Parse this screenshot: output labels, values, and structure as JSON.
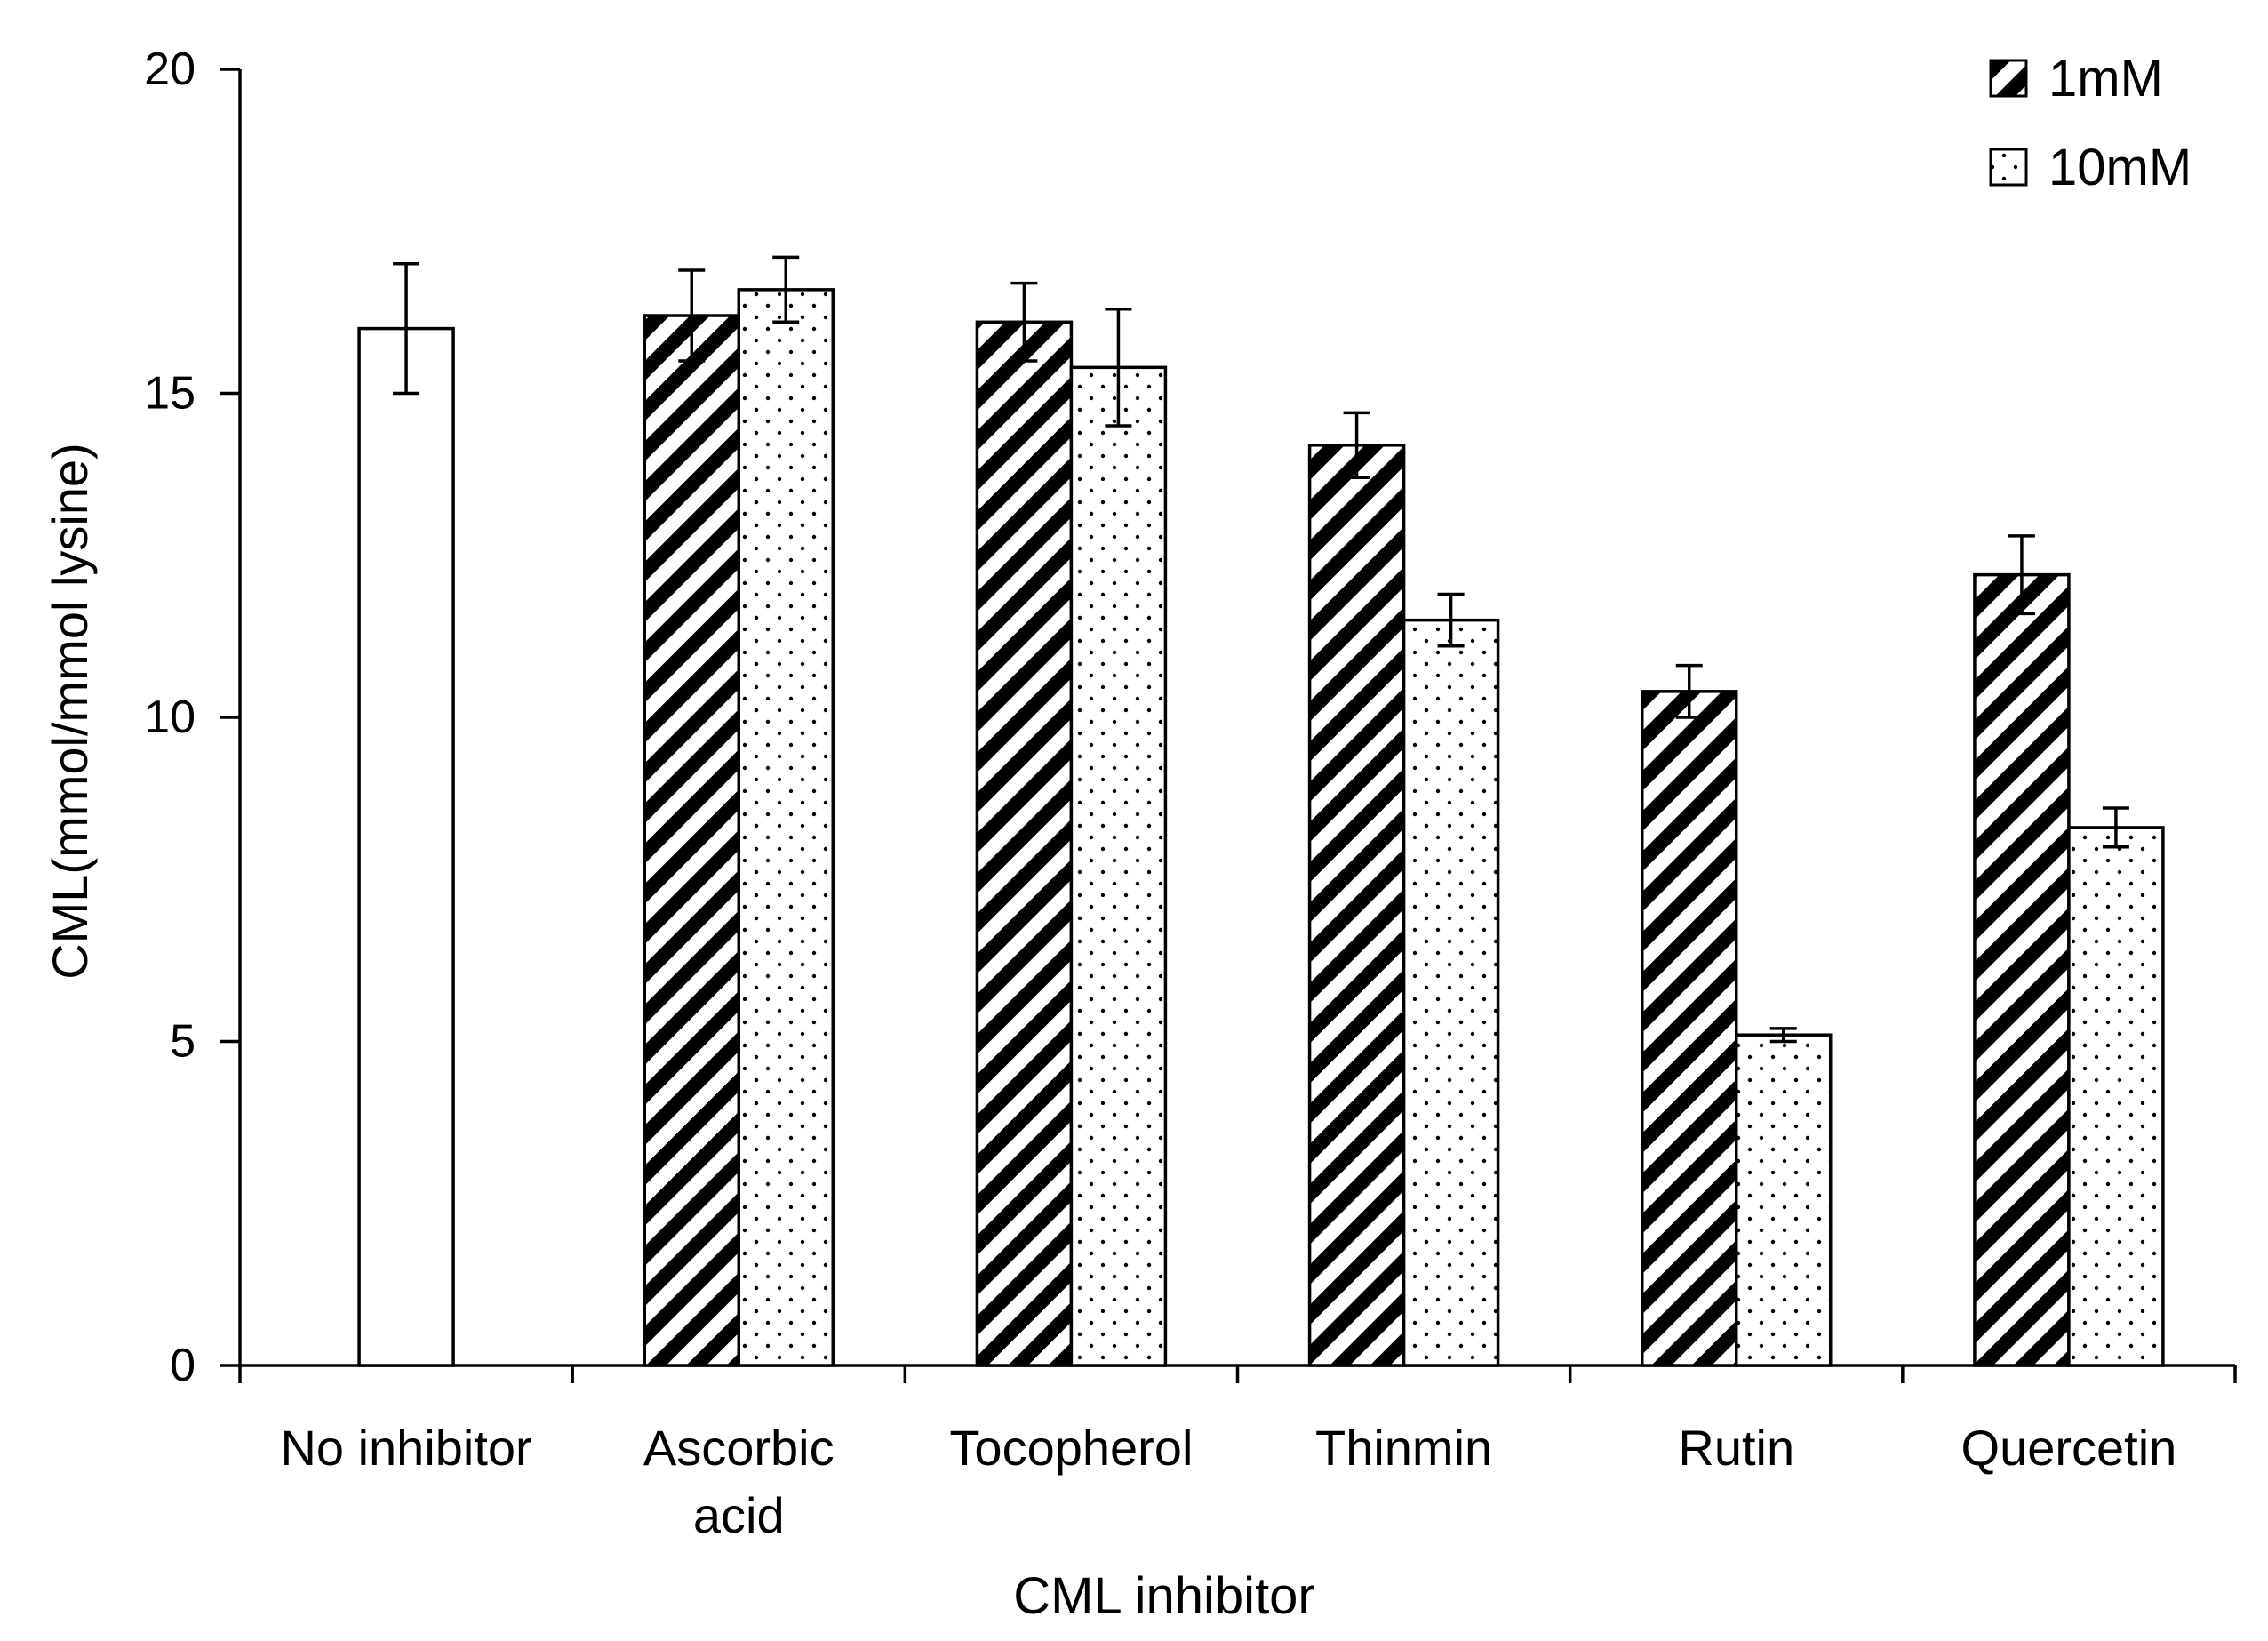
{
  "chart_data": {
    "type": "bar",
    "title": "",
    "xlabel": "CML inhibitor",
    "ylabel": "CML(mmol/mmol lysine)",
    "ylim": [
      0,
      20
    ],
    "yticks": [
      0,
      5,
      10,
      15,
      20
    ],
    "grid": false,
    "legend_position": "top-right",
    "categories": [
      [
        "No inhibitor"
      ],
      [
        "Ascorbic",
        "acid"
      ],
      [
        "Tocopherol"
      ],
      [
        "Thinmin"
      ],
      [
        "Rutin"
      ],
      [
        "Quercetin"
      ]
    ],
    "control": {
      "name": "No inhibitor",
      "value": 16.0,
      "error": 1.0
    },
    "series": [
      {
        "name": "1mM",
        "pattern": "diagonal-stripes",
        "values": [
          null,
          16.2,
          16.1,
          14.2,
          10.4,
          12.2
        ],
        "errors": [
          null,
          0.7,
          0.6,
          0.5,
          0.4,
          0.6
        ]
      },
      {
        "name": "10mM",
        "pattern": "dots",
        "values": [
          null,
          16.6,
          15.4,
          11.5,
          5.1,
          8.3
        ],
        "errors": [
          null,
          0.5,
          0.9,
          0.4,
          0.1,
          0.3
        ]
      }
    ]
  }
}
